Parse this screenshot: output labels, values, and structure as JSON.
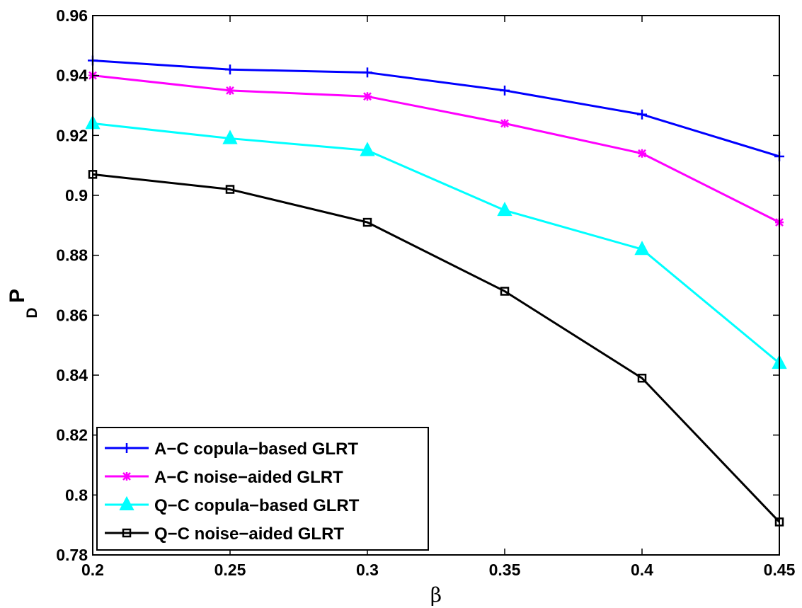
{
  "chart_data": {
    "type": "line",
    "title": "",
    "xlabel": "β",
    "ylabel": "P",
    "ylabel_subscript": "D",
    "xlim": [
      0.2,
      0.45
    ],
    "ylim": [
      0.78,
      0.96
    ],
    "x_ticks": [
      "0.2",
      "0.25",
      "0.3",
      "0.35",
      "0.4",
      "0.45"
    ],
    "y_ticks": [
      "0.78",
      "0.8",
      "0.82",
      "0.84",
      "0.86",
      "0.88",
      "0.9",
      "0.92",
      "0.94",
      "0.96"
    ],
    "x": [
      0.2,
      0.25,
      0.3,
      0.35,
      0.4,
      0.45
    ],
    "grid": false,
    "legend_position": "bottom-left",
    "series": [
      {
        "name": "A−C copula−based GLRT",
        "color": "#0000ff",
        "marker": "plus",
        "values": [
          0.945,
          0.942,
          0.941,
          0.935,
          0.927,
          0.913
        ]
      },
      {
        "name": "A−C noise−aided GLRT",
        "color": "#ff00ff",
        "marker": "star",
        "values": [
          0.94,
          0.935,
          0.933,
          0.924,
          0.914,
          0.891
        ]
      },
      {
        "name": "Q−C copula−based GLRT",
        "color": "#00ffff",
        "marker": "triangle",
        "values": [
          0.924,
          0.919,
          0.915,
          0.895,
          0.882,
          0.844
        ]
      },
      {
        "name": "Q−C noise−aided GLRT",
        "color": "#000000",
        "marker": "square",
        "values": [
          0.907,
          0.902,
          0.891,
          0.868,
          0.839,
          0.791
        ]
      }
    ]
  }
}
